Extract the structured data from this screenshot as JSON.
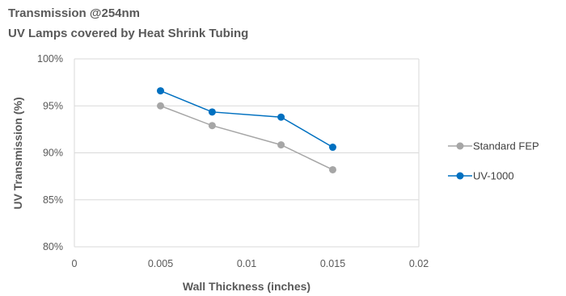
{
  "chart_data": {
    "type": "line",
    "title": "Transmission @254nm",
    "subtitle": "UV Lamps covered by Heat Shrink Tubing",
    "xlabel": "Wall Thickness (inches)",
    "ylabel": "UV Transmission (%)",
    "xlim": [
      0,
      0.02
    ],
    "ylim": [
      80,
      100
    ],
    "x_ticks": [
      "0",
      "0.005",
      "0.01",
      "0.015",
      "0.02"
    ],
    "y_ticks": [
      "80%",
      "85%",
      "90%",
      "95%",
      "100%"
    ],
    "grid": "horizontal",
    "legend": "right",
    "series": [
      {
        "name": "Standard FEP",
        "color": "#a6a6a6",
        "points": [
          [
            0.005,
            95.0
          ],
          [
            0.008,
            92.9
          ],
          [
            0.012,
            90.85
          ],
          [
            0.015,
            88.2
          ]
        ]
      },
      {
        "name": "UV-1000",
        "color": "#0070c0",
        "points": [
          [
            0.005,
            96.6
          ],
          [
            0.008,
            94.35
          ],
          [
            0.012,
            93.8
          ],
          [
            0.015,
            90.6
          ]
        ]
      }
    ]
  }
}
